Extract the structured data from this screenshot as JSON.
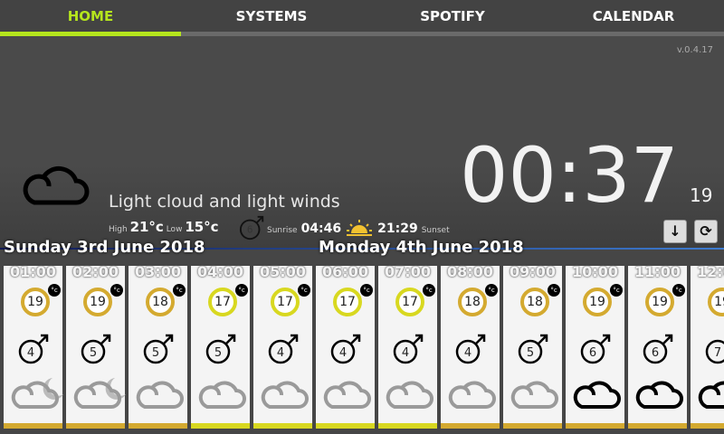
{
  "nav": {
    "tabs": [
      {
        "label": "HOME",
        "active": true
      },
      {
        "label": "SYSTEMS"
      },
      {
        "label": "SPOTIFY"
      },
      {
        "label": "CALENDAR"
      }
    ]
  },
  "version": "v.0.4.17",
  "current": {
    "icon": "cloud-icon",
    "summary": "Light cloud and light winds",
    "high_label": "High",
    "high": "21°c",
    "low_label": "Low",
    "low": "15°c",
    "wind": "6",
    "sunrise_label": "Sunrise",
    "sunrise": "04:46",
    "sunset": "21:29",
    "sunset_label": "Sunset"
  },
  "clock": {
    "time": "00:37",
    "seconds": "19"
  },
  "buttons": {
    "down": "↓",
    "refresh": "⟳"
  },
  "days": [
    "Sunday 3rd June 2018",
    "Monday 4th June 2018"
  ],
  "colors": {
    "accent": "#b5e61d",
    "warm": "#d4aa30",
    "mild": "#d8d820"
  },
  "hours": [
    {
      "time": "01:00",
      "temp": "19",
      "unit": "°c",
      "wind": "4",
      "icon": "cloud-moon-icon"
    },
    {
      "time": "02:00",
      "temp": "19",
      "unit": "°c",
      "wind": "5",
      "icon": "cloud-moon-icon"
    },
    {
      "time": "03:00",
      "temp": "18",
      "unit": "°c",
      "wind": "5",
      "icon": "cloud-grey-icon"
    },
    {
      "time": "04:00",
      "temp": "17",
      "unit": "°c",
      "wind": "5",
      "icon": "cloud-grey-icon"
    },
    {
      "time": "05:00",
      "temp": "17",
      "unit": "°c",
      "wind": "4",
      "icon": "cloud-grey-icon"
    },
    {
      "time": "06:00",
      "temp": "17",
      "unit": "°c",
      "wind": "4",
      "icon": "cloud-grey-icon"
    },
    {
      "time": "07:00",
      "temp": "17",
      "unit": "°c",
      "wind": "4",
      "icon": "cloud-grey-icon"
    },
    {
      "time": "08:00",
      "temp": "18",
      "unit": "°c",
      "wind": "4",
      "icon": "cloud-grey-icon"
    },
    {
      "time": "09:00",
      "temp": "18",
      "unit": "°c",
      "wind": "5",
      "icon": "cloud-grey-icon"
    },
    {
      "time": "10:00",
      "temp": "19",
      "unit": "°c",
      "wind": "6",
      "icon": "cloud-icon"
    },
    {
      "time": "11:00",
      "temp": "19",
      "unit": "°c",
      "wind": "6",
      "icon": "cloud-icon"
    },
    {
      "time": "12:00",
      "temp": "19",
      "unit": "°c",
      "wind": "7",
      "icon": "cloud-icon"
    }
  ]
}
